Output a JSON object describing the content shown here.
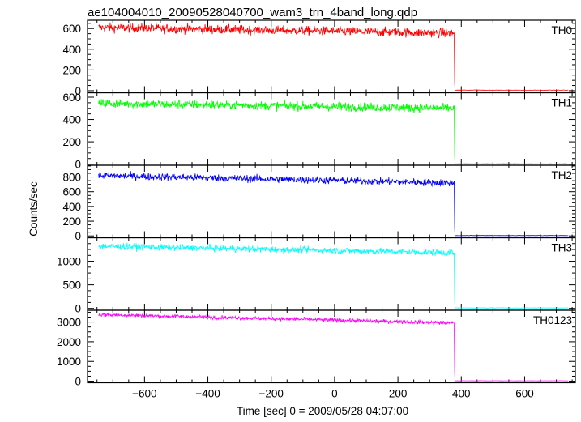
{
  "chart_data": {
    "type": "line",
    "title": "ae104004010_20090528040700_wam3_trn_4band_long.qdp",
    "xlabel": "Time [sec] 0 = 2009/05/28 04:07:00",
    "ylabel": "Counts/sec",
    "xlim": [
      -780,
      760
    ],
    "xticks": [
      -600,
      -400,
      -200,
      0,
      200,
      400,
      600
    ],
    "grid": false,
    "x_range_data": [
      -745,
      740
    ],
    "drop_time": 378,
    "panels": [
      {
        "label": "TH0",
        "color": "#ff0000",
        "ylim": [
          -20,
          680
        ],
        "yticks": [
          0,
          200,
          400,
          600
        ],
        "level_start": 610,
        "level_end": 555,
        "noise": 22,
        "after_level": 5
      },
      {
        "label": "TH1",
        "color": "#00ff00",
        "ylim": [
          -10,
          640
        ],
        "yticks": [
          0,
          200,
          400,
          600
        ],
        "level_start": 545,
        "level_end": 500,
        "noise": 20,
        "after_level": 3
      },
      {
        "label": "TH2",
        "color": "#0000ff",
        "ylim": [
          -25,
          960
        ],
        "yticks": [
          0,
          200,
          400,
          600,
          800
        ],
        "level_start": 820,
        "level_end": 720,
        "noise": 25,
        "after_level": 5
      },
      {
        "label": "TH3",
        "color": "#00ffff",
        "ylim": [
          -40,
          1500
        ],
        "yticks": [
          0,
          500,
          1000
        ],
        "level_start": 1320,
        "level_end": 1180,
        "noise": 35,
        "after_level": 10
      },
      {
        "label": "TH0123",
        "color": "#ff00ff",
        "ylim": [
          -80,
          3600
        ],
        "yticks": [
          0,
          1000,
          2000,
          3000
        ],
        "level_start": 3380,
        "level_end": 2950,
        "noise": 50,
        "after_level": 20
      }
    ]
  }
}
